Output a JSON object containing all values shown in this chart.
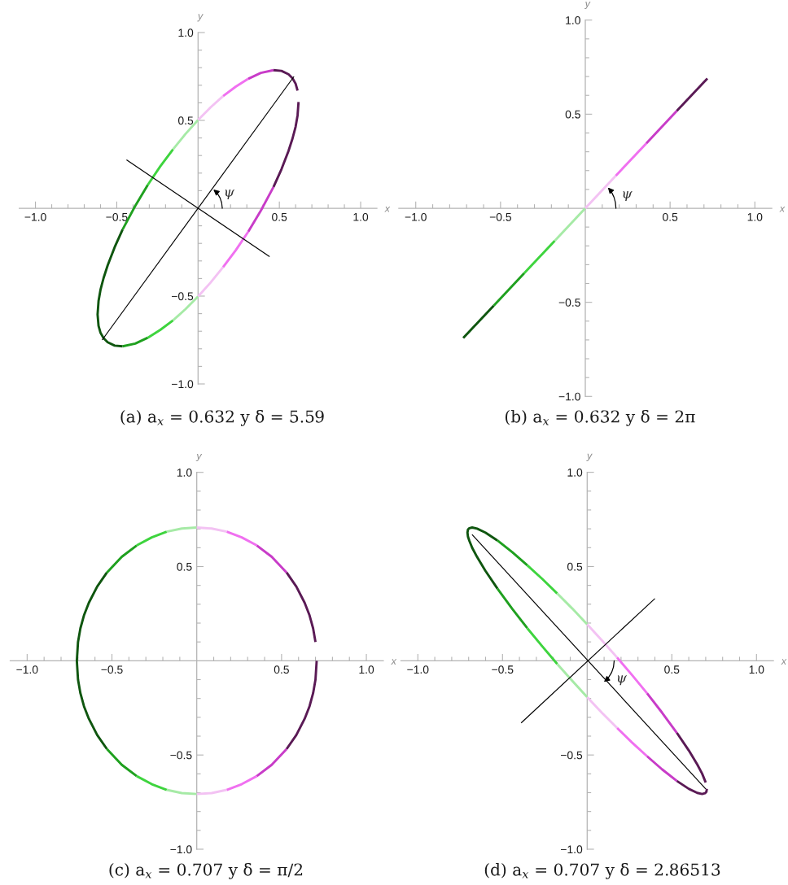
{
  "chart_data": [
    {
      "type": "line",
      "title": "(a) a$_{x}$ = 0.632 y δ = 5.59",
      "xlabel": "x",
      "ylabel": "y",
      "xlim": [
        -1.1,
        1.1
      ],
      "ylim": [
        -1,
        1
      ],
      "xticks": [
        {
          "value": -1,
          "label": "−1.0"
        },
        {
          "value": -0.9,
          "label": null
        },
        {
          "value": -0.8,
          "label": null
        },
        {
          "value": -0.7,
          "label": null
        },
        {
          "value": -0.6,
          "label": null
        },
        {
          "value": -0.5,
          "label": "−0.5"
        },
        {
          "value": -0.4,
          "label": null
        },
        {
          "value": -0.3,
          "label": null
        },
        {
          "value": -0.2,
          "label": null
        },
        {
          "value": -0.1,
          "label": null
        },
        {
          "value": 0.1,
          "label": null
        },
        {
          "value": 0.2,
          "label": null
        },
        {
          "value": 0.3,
          "label": null
        },
        {
          "value": 0.4,
          "label": null
        },
        {
          "value": 0.5,
          "label": "0.5"
        },
        {
          "value": 0.6,
          "label": null
        },
        {
          "value": 0.7,
          "label": null
        },
        {
          "value": 0.8,
          "label": null
        },
        {
          "value": 0.9,
          "label": null
        },
        {
          "value": 1,
          "label": "1.0"
        }
      ],
      "yticks": [
        {
          "value": -1,
          "label": "−1.0"
        },
        {
          "value": -0.9,
          "label": null
        },
        {
          "value": -0.8,
          "label": null
        },
        {
          "value": -0.7,
          "label": null
        },
        {
          "value": -0.6,
          "label": null
        },
        {
          "value": -0.5,
          "label": "−0.5"
        },
        {
          "value": -0.4,
          "label": null
        },
        {
          "value": -0.3,
          "label": null
        },
        {
          "value": -0.2,
          "label": null
        },
        {
          "value": -0.1,
          "label": null
        },
        {
          "value": 0.1,
          "label": null
        },
        {
          "value": 0.2,
          "label": null
        },
        {
          "value": 0.3,
          "label": null
        },
        {
          "value": 0.4,
          "label": null
        },
        {
          "value": 0.5,
          "label": "0.5"
        },
        {
          "value": 0.6,
          "label": null
        },
        {
          "value": 0.7,
          "label": null
        },
        {
          "value": 0.8,
          "label": null
        },
        {
          "value": 0.9,
          "label": null
        },
        {
          "value": 1,
          "label": "1.0"
        }
      ],
      "series": [
        {
          "color": "#0f560f",
          "x": [
            -0.464,
            -0.513,
            -0.556,
            -0.581,
            -0.6,
            -0.612,
            -0.618,
            -0.612,
            -0.6,
            -0.581,
            -0.556,
            -0.513,
            -0.464
          ],
          "values": [
            -0.786,
            -0.782,
            -0.763,
            -0.74,
            -0.709,
            -0.67,
            -0.605,
            -0.528,
            -0.464,
            -0.397,
            -0.325,
            -0.222,
            -0.121
          ]
        },
        {
          "color": "#1fa01f",
          "x": [
            -0.464,
            -0.386,
            -0.309,
            null,
            -0.464,
            -0.386,
            -0.309
          ],
          "values": [
            -0.121,
            0.014,
            0.133,
            null,
            -0.786,
            -0.77,
            -0.737
          ]
        },
        {
          "color": "#3ed43e",
          "x": [
            -0.309,
            -0.232,
            -0.154,
            null,
            -0.309,
            -0.232,
            -0.154
          ],
          "values": [
            0.133,
            0.239,
            0.335,
            null,
            -0.737,
            -0.692,
            -0.638
          ]
        },
        {
          "color": "#a6eaa6",
          "x": [
            -0.154,
            -0.077,
            0,
            null,
            -0.154,
            -0.077,
            0
          ],
          "values": [
            0.335,
            0.423,
            0.502,
            null,
            -0.638,
            -0.574,
            -0.502
          ]
        },
        {
          "color": "#f3c2f3",
          "x": [
            0,
            0.077,
            0.154,
            null,
            0,
            0.077,
            0.154
          ],
          "values": [
            0.502,
            0.574,
            0.638,
            null,
            -0.502,
            -0.423,
            -0.335
          ]
        },
        {
          "color": "#f070f0",
          "x": [
            0.154,
            0.232,
            0.309,
            null,
            0.154,
            0.232,
            0.309
          ],
          "values": [
            0.638,
            0.692,
            0.737,
            null,
            -0.335,
            -0.239,
            -0.133
          ]
        },
        {
          "color": "#c83cc8",
          "x": [
            0.309,
            0.386,
            0.464,
            null,
            0.309,
            0.386,
            0.464
          ],
          "values": [
            0.737,
            0.77,
            0.786,
            null,
            -0.133,
            -0.014,
            0.121
          ]
        },
        {
          "color": "#5a1a55",
          "x": [
            0.464,
            0.513,
            0.556,
            0.581,
            0.6,
            0.612,
            0.618,
            null,
            0.612,
            0.6,
            0.581,
            0.556,
            0.513,
            0.464
          ],
          "values": [
            0.121,
            0.222,
            0.325,
            0.397,
            0.464,
            0.528,
            0.605,
            null,
            0.67,
            0.709,
            0.74,
            0.763,
            0.782,
            0.786
          ]
        },
        {
          "color": "#000000",
          "x": [
            -0.59,
            0.59
          ],
          "values": [
            -0.75,
            0.75
          ]
        },
        {
          "color": "#000000",
          "x": [
            -0.44,
            0.44
          ],
          "values": [
            0.275,
            -0.275
          ]
        }
      ],
      "annotations": [
        "ψ"
      ]
    },
    {
      "type": "line",
      "title": "(b) a$_{x}$ = 0.632 y δ = 2π",
      "xlabel": "x",
      "ylabel": "y",
      "xlim": [
        -1.1,
        1.1
      ],
      "ylim": [
        -1,
        1
      ],
      "xticks": [
        {
          "value": -1,
          "label": "−1.0"
        },
        {
          "value": -0.9,
          "label": null
        },
        {
          "value": -0.8,
          "label": null
        },
        {
          "value": -0.7,
          "label": null
        },
        {
          "value": -0.6,
          "label": null
        },
        {
          "value": -0.5,
          "label": "−0.5"
        },
        {
          "value": -0.4,
          "label": null
        },
        {
          "value": -0.3,
          "label": null
        },
        {
          "value": -0.2,
          "label": null
        },
        {
          "value": -0.1,
          "label": null
        },
        {
          "value": 0.1,
          "label": null
        },
        {
          "value": 0.2,
          "label": null
        },
        {
          "value": 0.3,
          "label": null
        },
        {
          "value": 0.4,
          "label": null
        },
        {
          "value": 0.5,
          "label": "0.5"
        },
        {
          "value": 0.6,
          "label": null
        },
        {
          "value": 0.7,
          "label": null
        },
        {
          "value": 0.8,
          "label": null
        },
        {
          "value": 0.9,
          "label": null
        },
        {
          "value": 1,
          "label": "1.0"
        }
      ],
      "yticks": [
        {
          "value": -1,
          "label": "−1.0"
        },
        {
          "value": -0.9,
          "label": null
        },
        {
          "value": -0.8,
          "label": null
        },
        {
          "value": -0.7,
          "label": null
        },
        {
          "value": -0.6,
          "label": null
        },
        {
          "value": -0.5,
          "label": "−0.5"
        },
        {
          "value": -0.4,
          "label": null
        },
        {
          "value": -0.3,
          "label": null
        },
        {
          "value": -0.2,
          "label": null
        },
        {
          "value": -0.1,
          "label": null
        },
        {
          "value": 0.1,
          "label": null
        },
        {
          "value": 0.2,
          "label": null
        },
        {
          "value": 0.3,
          "label": null
        },
        {
          "value": 0.4,
          "label": null
        },
        {
          "value": 0.5,
          "label": "0.5"
        },
        {
          "value": 0.6,
          "label": null
        },
        {
          "value": 0.7,
          "label": null
        },
        {
          "value": 0.8,
          "label": null
        },
        {
          "value": 0.9,
          "label": null
        },
        {
          "value": 1,
          "label": "1.0"
        }
      ],
      "series": [
        {
          "color": "#0f560f",
          "x": [
            -0.72,
            -0.54
          ],
          "values": [
            -0.69,
            -0.518
          ]
        },
        {
          "color": "#1fa01f",
          "x": [
            -0.54,
            -0.36
          ],
          "values": [
            -0.518,
            -0.345
          ]
        },
        {
          "color": "#3ed43e",
          "x": [
            -0.36,
            -0.18
          ],
          "values": [
            -0.345,
            -0.173
          ]
        },
        {
          "color": "#a6eaa6",
          "x": [
            -0.18,
            0
          ],
          "values": [
            -0.173,
            0
          ]
        },
        {
          "color": "#f3c2f3",
          "x": [
            0,
            0.18
          ],
          "values": [
            0,
            0.173
          ]
        },
        {
          "color": "#f070f0",
          "x": [
            0.18,
            0.36
          ],
          "values": [
            0.173,
            0.345
          ]
        },
        {
          "color": "#c83cc8",
          "x": [
            0.36,
            0.54
          ],
          "values": [
            0.345,
            0.518
          ]
        },
        {
          "color": "#5a1a55",
          "x": [
            0.54,
            0.72
          ],
          "values": [
            0.518,
            0.69
          ]
        }
      ],
      "annotations": [
        "ψ"
      ]
    },
    {
      "type": "line",
      "title": "(c) a$_{x}$ = 0.707 y δ = π/2",
      "xlabel": "x",
      "ylabel": "y",
      "xlim": [
        -1.1,
        1.1
      ],
      "ylim": [
        -1,
        1
      ],
      "xticks": [
        {
          "value": -1,
          "label": "−1.0"
        },
        {
          "value": -0.9,
          "label": null
        },
        {
          "value": -0.8,
          "label": null
        },
        {
          "value": -0.7,
          "label": null
        },
        {
          "value": -0.6,
          "label": null
        },
        {
          "value": -0.5,
          "label": "−0.5"
        },
        {
          "value": -0.4,
          "label": null
        },
        {
          "value": -0.3,
          "label": null
        },
        {
          "value": -0.2,
          "label": null
        },
        {
          "value": -0.1,
          "label": null
        },
        {
          "value": 0.1,
          "label": null
        },
        {
          "value": 0.2,
          "label": null
        },
        {
          "value": 0.3,
          "label": null
        },
        {
          "value": 0.4,
          "label": null
        },
        {
          "value": 0.5,
          "label": "0.5"
        },
        {
          "value": 0.6,
          "label": null
        },
        {
          "value": 0.7,
          "label": null
        },
        {
          "value": 0.8,
          "label": null
        },
        {
          "value": 0.9,
          "label": null
        },
        {
          "value": 1,
          "label": "1.0"
        }
      ],
      "yticks": [
        {
          "value": -1,
          "label": "−1.0"
        },
        {
          "value": -0.9,
          "label": null
        },
        {
          "value": -0.8,
          "label": null
        },
        {
          "value": -0.7,
          "label": null
        },
        {
          "value": -0.6,
          "label": null
        },
        {
          "value": -0.5,
          "label": "−0.5"
        },
        {
          "value": -0.4,
          "label": null
        },
        {
          "value": -0.3,
          "label": null
        },
        {
          "value": -0.2,
          "label": null
        },
        {
          "value": -0.1,
          "label": null
        },
        {
          "value": 0.1,
          "label": null
        },
        {
          "value": 0.2,
          "label": null
        },
        {
          "value": 0.3,
          "label": null
        },
        {
          "value": 0.4,
          "label": null
        },
        {
          "value": 0.5,
          "label": "0.5"
        },
        {
          "value": 0.6,
          "label": null
        },
        {
          "value": 0.7,
          "label": null
        },
        {
          "value": 0.8,
          "label": null
        },
        {
          "value": 0.9,
          "label": null
        },
        {
          "value": 1,
          "label": "1.0"
        }
      ],
      "series": [
        {
          "color": "#0f560f",
          "x": [
            -0.53,
            -0.587,
            -0.636,
            -0.665,
            -0.686,
            -0.7,
            -0.707,
            -0.7,
            -0.686,
            -0.665,
            -0.636,
            -0.587,
            -0.53
          ],
          "values": [
            -0.468,
            -0.394,
            -0.308,
            -0.241,
            -0.172,
            -0.1,
            0,
            0.1,
            0.172,
            0.241,
            0.308,
            0.394,
            0.468
          ]
        },
        {
          "color": "#1fa01f",
          "x": [
            -0.53,
            -0.442,
            -0.354,
            null,
            -0.53,
            -0.442,
            -0.354
          ],
          "values": [
            0.468,
            0.552,
            0.612,
            null,
            -0.468,
            -0.552,
            -0.612
          ]
        },
        {
          "color": "#3ed43e",
          "x": [
            -0.354,
            -0.265,
            -0.177,
            null,
            -0.354,
            -0.265,
            -0.177
          ],
          "values": [
            0.612,
            0.655,
            0.685,
            null,
            -0.612,
            -0.655,
            -0.685
          ]
        },
        {
          "color": "#a6eaa6",
          "x": [
            -0.177,
            -0.088,
            0,
            null,
            -0.177,
            -0.088,
            0
          ],
          "values": [
            0.685,
            0.702,
            0.707,
            null,
            -0.685,
            -0.702,
            -0.707
          ]
        },
        {
          "color": "#f3c2f3",
          "x": [
            0,
            0.088,
            0.177,
            null,
            0,
            0.088,
            0.177
          ],
          "values": [
            0.707,
            0.702,
            0.685,
            null,
            -0.707,
            -0.702,
            -0.685
          ]
        },
        {
          "color": "#f070f0",
          "x": [
            0.177,
            0.265,
            0.354,
            null,
            0.177,
            0.265,
            0.354
          ],
          "values": [
            0.685,
            0.655,
            0.612,
            null,
            -0.685,
            -0.655,
            -0.612
          ]
        },
        {
          "color": "#c83cc8",
          "x": [
            0.354,
            0.442,
            0.53,
            null,
            0.354,
            0.442,
            0.53
          ],
          "values": [
            0.612,
            0.552,
            0.468,
            null,
            -0.612,
            -0.552,
            -0.468
          ]
        },
        {
          "color": "#5a1a55",
          "x": [
            0.53,
            0.587,
            0.636,
            0.665,
            0.686,
            0.7,
            0.707,
            null,
            0.7,
            0.686,
            0.665,
            0.636,
            0.587,
            0.53
          ],
          "values": [
            -0.468,
            -0.394,
            -0.308,
            -0.241,
            -0.172,
            -0.1,
            0,
            null,
            0.1,
            0.172,
            0.241,
            0.308,
            0.394,
            0.468
          ]
        }
      ]
    },
    {
      "type": "line",
      "title": "(d) a$_{x}$ = 0.707 y δ = 2.86513",
      "xlabel": "x",
      "ylabel": "y",
      "xlim": [
        -1.1,
        1.1
      ],
      "ylim": [
        -1,
        1
      ],
      "xticks": [
        {
          "value": -1,
          "label": "−1.0"
        },
        {
          "value": -0.9,
          "label": null
        },
        {
          "value": -0.8,
          "label": null
        },
        {
          "value": -0.7,
          "label": null
        },
        {
          "value": -0.6,
          "label": null
        },
        {
          "value": -0.5,
          "label": "−0.5"
        },
        {
          "value": -0.4,
          "label": null
        },
        {
          "value": -0.3,
          "label": null
        },
        {
          "value": -0.2,
          "label": null
        },
        {
          "value": -0.1,
          "label": null
        },
        {
          "value": 0.1,
          "label": null
        },
        {
          "value": 0.2,
          "label": null
        },
        {
          "value": 0.3,
          "label": null
        },
        {
          "value": 0.4,
          "label": null
        },
        {
          "value": 0.5,
          "label": "0.5"
        },
        {
          "value": 0.6,
          "label": null
        },
        {
          "value": 0.7,
          "label": null
        },
        {
          "value": 0.8,
          "label": null
        },
        {
          "value": 0.9,
          "label": null
        },
        {
          "value": 1,
          "label": "1.0"
        }
      ],
      "yticks": [
        {
          "value": -1,
          "label": "−1.0"
        },
        {
          "value": -0.9,
          "label": null
        },
        {
          "value": -0.8,
          "label": null
        },
        {
          "value": -0.7,
          "label": null
        },
        {
          "value": -0.6,
          "label": null
        },
        {
          "value": -0.5,
          "label": "−0.5"
        },
        {
          "value": -0.4,
          "label": null
        },
        {
          "value": -0.3,
          "label": null
        },
        {
          "value": -0.2,
          "label": null
        },
        {
          "value": -0.1,
          "label": null
        },
        {
          "value": 0.1,
          "label": null
        },
        {
          "value": 0.2,
          "label": null
        },
        {
          "value": 0.3,
          "label": null
        },
        {
          "value": 0.4,
          "label": null
        },
        {
          "value": 0.5,
          "label": "0.5"
        },
        {
          "value": 0.6,
          "label": null
        },
        {
          "value": 0.7,
          "label": null
        },
        {
          "value": 0.8,
          "label": null
        },
        {
          "value": 0.9,
          "label": null
        },
        {
          "value": 1,
          "label": "1.0"
        }
      ],
      "series": [
        {
          "color": "#0f560f",
          "x": [
            -0.53,
            -0.601,
            -0.65,
            -0.679,
            -0.696,
            -0.704,
            -0.707,
            -0.704,
            -0.696,
            -0.679,
            -0.65,
            -0.601,
            -0.53
          ],
          "values": [
            0.383,
            0.477,
            0.55,
            0.599,
            0.637,
            0.658,
            0.68,
            0.696,
            0.703,
            0.707,
            0.701,
            0.68,
            0.638
          ]
        },
        {
          "color": "#1fa01f",
          "x": [
            -0.53,
            -0.442,
            -0.354,
            null,
            -0.53,
            -0.442,
            -0.354
          ],
          "values": [
            0.638,
            0.576,
            0.507,
            null,
            0.383,
            0.275,
            0.173
          ]
        },
        {
          "color": "#3ed43e",
          "x": [
            -0.354,
            -0.265,
            -0.177,
            null,
            -0.354,
            -0.265,
            -0.177
          ],
          "values": [
            0.507,
            0.434,
            0.357,
            null,
            0.173,
            0.076,
            -0.017
          ]
        },
        {
          "color": "#a6eaa6",
          "x": [
            -0.177,
            -0.088,
            0,
            null,
            -0.177,
            -0.088,
            0
          ],
          "values": [
            0.357,
            0.277,
            0.193,
            null,
            -0.017,
            -0.107,
            -0.193
          ]
        },
        {
          "color": "#f3c2f3",
          "x": [
            0,
            0.088,
            0.177,
            null,
            0,
            0.088,
            0.177
          ],
          "values": [
            0.193,
            0.107,
            0.017,
            null,
            -0.193,
            -0.277,
            -0.357
          ]
        },
        {
          "color": "#f070f0",
          "x": [
            0.177,
            0.265,
            0.354,
            null,
            0.177,
            0.265,
            0.354
          ],
          "values": [
            0.017,
            -0.076,
            -0.173,
            null,
            -0.357,
            -0.434,
            -0.507
          ]
        },
        {
          "color": "#c83cc8",
          "x": [
            0.354,
            0.442,
            0.53,
            null,
            0.354,
            0.442,
            0.53
          ],
          "values": [
            -0.173,
            -0.275,
            -0.383,
            null,
            -0.507,
            -0.576,
            -0.638
          ]
        },
        {
          "color": "#5a1a55",
          "x": [
            0.53,
            0.601,
            0.65,
            0.679,
            0.696,
            0.704,
            0.707,
            null,
            0.7,
            0.696,
            0.679,
            0.65,
            0.601,
            0.53
          ],
          "values": [
            -0.638,
            -0.68,
            -0.701,
            -0.707,
            -0.703,
            -0.696,
            -0.68,
            null,
            -0.646,
            -0.637,
            -0.599,
            -0.55,
            -0.477,
            -0.383
          ]
        },
        {
          "color": "#000000",
          "x": [
            -0.68,
            0.7
          ],
          "values": [
            0.67,
            -0.68
          ]
        },
        {
          "color": "#000000",
          "x": [
            -0.39,
            0.4
          ],
          "values": [
            -0.33,
            0.33
          ]
        }
      ],
      "annotations": [
        "ψ"
      ]
    }
  ]
}
